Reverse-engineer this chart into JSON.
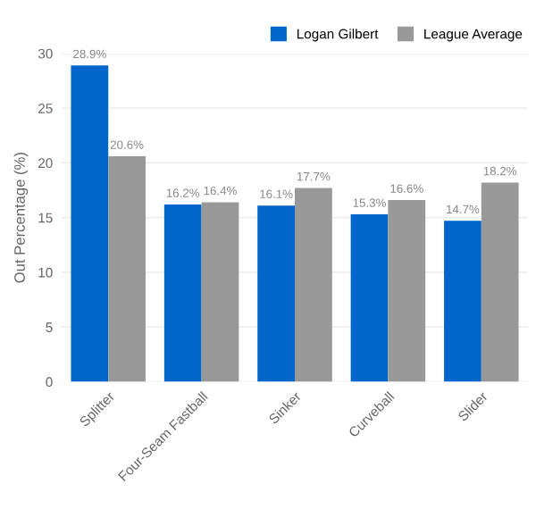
{
  "chart_data": {
    "type": "bar",
    "ylabel": "Out Percentage (%)",
    "categories": [
      "Splitter",
      "Four-Seam Fastball",
      "Sinker",
      "Curveball",
      "Slider"
    ],
    "series": [
      {
        "name": "Logan Gilbert",
        "color": "#0066cc",
        "values": [
          28.9,
          16.2,
          16.1,
          15.3,
          14.7
        ],
        "value_labels": [
          "28.9%",
          "16.2%",
          "16.1%",
          "15.3%",
          "14.7%"
        ]
      },
      {
        "name": "League Average",
        "color": "#999999",
        "values": [
          20.6,
          16.4,
          17.7,
          16.6,
          18.2
        ],
        "value_labels": [
          "20.6%",
          "16.4%",
          "17.7%",
          "16.6%",
          "18.2%"
        ]
      }
    ],
    "ylim": [
      0,
      30
    ],
    "yticks": [
      0,
      5,
      10,
      15,
      20,
      25,
      30
    ],
    "grid": "y",
    "legend": "top right"
  }
}
